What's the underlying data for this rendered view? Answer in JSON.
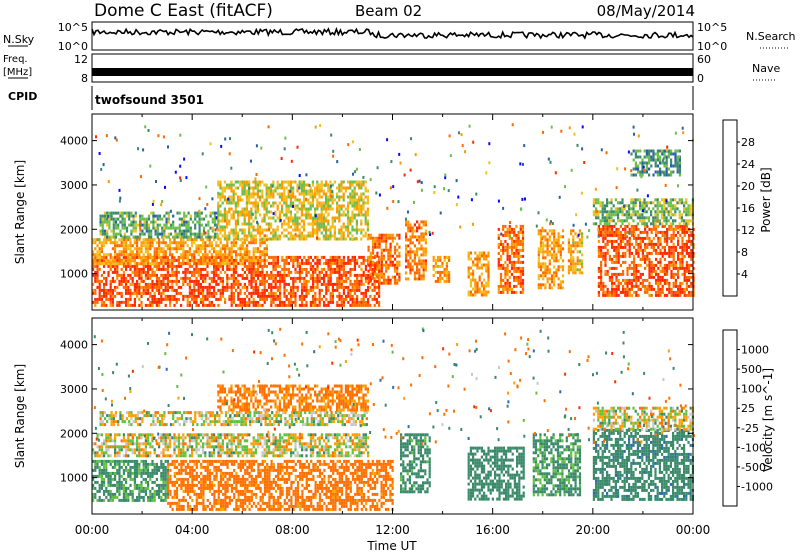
{
  "header": {
    "title": "Dome C East (fitACF)",
    "beam": "Beam 02",
    "date": "08/May/2014"
  },
  "strips": {
    "nsky_label": "N.Sky",
    "nsearch_label": "N.Search",
    "noise_ticks": [
      "10^5",
      "10^0"
    ],
    "freq_label_1": "Freq.",
    "freq_label_2": "[MHz]",
    "freq_ticks": [
      "12",
      "8"
    ],
    "nave_label": "Nave",
    "nave_ticks": [
      "60",
      "0"
    ],
    "cpid_label": "CPID",
    "cpid_value": "twofsound 3501"
  },
  "chart_data": [
    {
      "type": "heatmap",
      "panel": "power",
      "ylabel": "Slant Range [km]",
      "xlabel": "Time UT",
      "xlim": [
        0,
        24
      ],
      "ylim": [
        180,
        4600
      ],
      "yticks": [
        "1000",
        "2000",
        "3000",
        "4000"
      ],
      "xticks": [
        "00:00",
        "04:00",
        "08:00",
        "12:00",
        "16:00",
        "20:00",
        "00:00"
      ],
      "colorbar": {
        "label": "Power [dB]",
        "ticks": [
          "4",
          "8",
          "12",
          "16",
          "20",
          "24",
          "28"
        ],
        "colors": [
          "#0a0aff",
          "#2c5fa8",
          "#3e8a6e",
          "#6bbf4a",
          "#f0c020",
          "#ff9a00",
          "#ff6a00",
          "#ff2a00"
        ]
      },
      "regions": [
        {
          "t0": 0.0,
          "t1": 11.5,
          "r0": 300,
          "r1": 1400,
          "value": 28
        },
        {
          "t0": 0.0,
          "t1": 7.0,
          "r0": 1200,
          "r1": 1800,
          "value": 22
        },
        {
          "t0": 0.3,
          "t1": 5.0,
          "r0": 1800,
          "r1": 2400,
          "value": 12
        },
        {
          "t0": 5.0,
          "t1": 11.0,
          "r0": 1800,
          "r1": 3100,
          "value": 18
        },
        {
          "t0": 11.0,
          "t1": 12.3,
          "r0": 800,
          "r1": 1900,
          "value": 26
        },
        {
          "t0": 12.5,
          "t1": 13.3,
          "r0": 900,
          "r1": 2200,
          "value": 24
        },
        {
          "t0": 13.6,
          "t1": 14.3,
          "r0": 800,
          "r1": 1400,
          "value": 22
        },
        {
          "t0": 15.0,
          "t1": 15.8,
          "r0": 500,
          "r1": 1500,
          "value": 22
        },
        {
          "t0": 16.2,
          "t1": 17.2,
          "r0": 600,
          "r1": 2100,
          "value": 26
        },
        {
          "t0": 17.8,
          "t1": 18.8,
          "r0": 700,
          "r1": 2000,
          "value": 22
        },
        {
          "t0": 19.0,
          "t1": 19.6,
          "r0": 1000,
          "r1": 2000,
          "value": 20
        },
        {
          "t0": 20.2,
          "t1": 24.0,
          "r0": 500,
          "r1": 2100,
          "value": 28
        },
        {
          "t0": 20.0,
          "t1": 24.0,
          "r0": 2100,
          "r1": 2700,
          "value": 14
        },
        {
          "t0": 21.5,
          "t1": 23.5,
          "r0": 3200,
          "r1": 3800,
          "value": 10
        }
      ]
    },
    {
      "type": "heatmap",
      "panel": "velocity",
      "ylabel": "Slant Range [km]",
      "xlabel": "Time UT",
      "xlim": [
        0,
        24
      ],
      "ylim": [
        180,
        4600
      ],
      "yticks": [
        "1000",
        "2000",
        "3000",
        "4000"
      ],
      "xticks": [
        "00:00",
        "04:00",
        "08:00",
        "12:00",
        "16:00",
        "20:00",
        "00:00"
      ],
      "colorbar": {
        "label": "Velocity [m s^-1]",
        "ticks": [
          "1000",
          "500",
          "100",
          "25",
          "-25",
          "-100",
          "-500",
          "-1000"
        ],
        "colors": [
          "#1a3fbf",
          "#2e6ea8",
          "#3a8a6a",
          "#60c040",
          "#c8c8c8",
          "#ffa000",
          "#ff7000",
          "#ff3000",
          "#ff0000"
        ]
      },
      "regions": [
        {
          "t0": 0.0,
          "t1": 3.0,
          "r0": 500,
          "r1": 1400,
          "value": 150
        },
        {
          "t0": 0.0,
          "t1": 11.0,
          "r0": 1500,
          "r1": 2000,
          "value": 0
        },
        {
          "t0": 0.3,
          "t1": 11.0,
          "r0": 2200,
          "r1": 2500,
          "value": 0
        },
        {
          "t0": 3.0,
          "t1": 12.0,
          "r0": 300,
          "r1": 1400,
          "value": -200
        },
        {
          "t0": 5.0,
          "t1": 11.0,
          "r0": 2500,
          "r1": 3100,
          "value": -150
        },
        {
          "t0": 12.3,
          "t1": 13.5,
          "r0": 700,
          "r1": 2000,
          "value": 200
        },
        {
          "t0": 15.0,
          "t1": 17.2,
          "r0": 500,
          "r1": 1700,
          "value": 300
        },
        {
          "t0": 17.6,
          "t1": 19.5,
          "r0": 600,
          "r1": 2000,
          "value": 150
        },
        {
          "t0": 20.0,
          "t1": 24.0,
          "r0": 500,
          "r1": 2100,
          "value": 400
        },
        {
          "t0": 20.0,
          "t1": 24.0,
          "r0": 2100,
          "r1": 2600,
          "value": 0
        }
      ]
    }
  ]
}
